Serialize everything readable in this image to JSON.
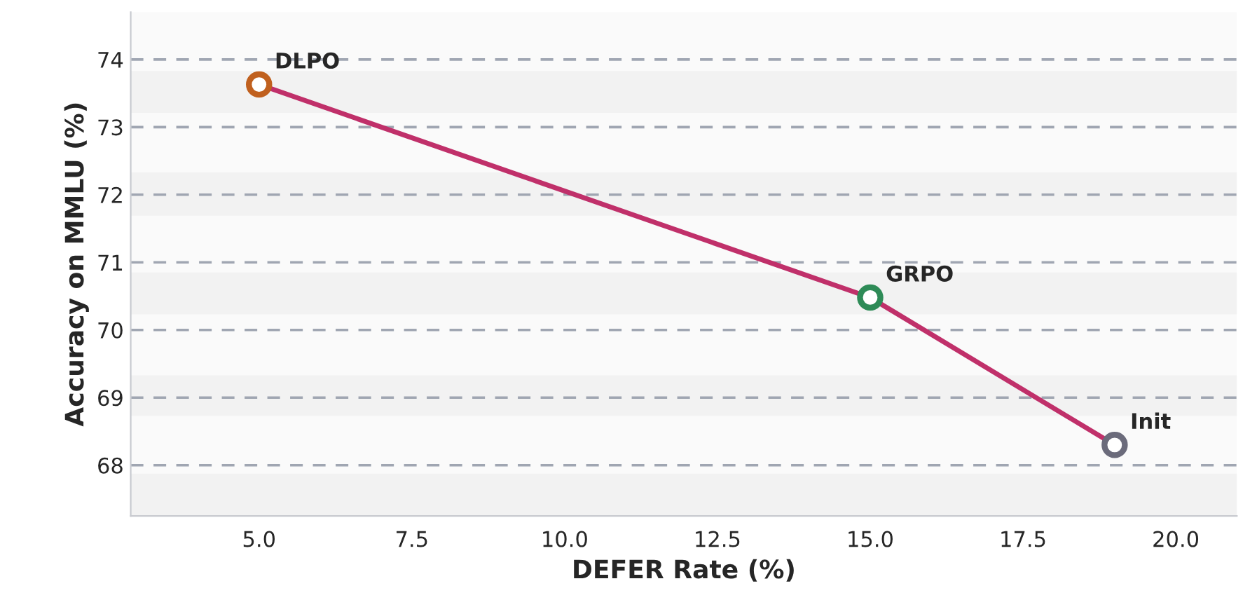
{
  "chart_data": {
    "type": "line",
    "xlabel": "DEFER Rate (%)",
    "ylabel": "Accuracy on MMLU (%)",
    "x": [
      5,
      15,
      19
    ],
    "series": [
      {
        "color": "#c0306a",
        "values": [
          73.63,
          70.48,
          68.3
        ],
        "colors": [
          "#c0601e",
          "#2e8b57",
          "#6b6b7b"
        ]
      }
    ],
    "marker": "circle",
    "line_style": "solid",
    "grid": "y",
    "xlim": [
      2.9,
      21.0
    ],
    "xticks": [
      {
        "value": 5,
        "label": "5.0"
      },
      {
        "value": 7.5,
        "label": "7.5"
      },
      {
        "value": 10,
        "label": "10.0"
      },
      {
        "value": 12.5,
        "label": "12.5"
      },
      {
        "value": 15,
        "label": "15.0"
      },
      {
        "value": 17.5,
        "label": "17.5"
      },
      {
        "value": 20,
        "label": "20.0"
      }
    ],
    "ylim": [
      67.25,
      74.7
    ],
    "yticks": [
      68,
      69,
      70,
      71,
      72,
      73,
      74
    ],
    "bands": [
      {
        "axis": "y",
        "from": 73.21,
        "to": 73.83,
        "color": "#f2f2f2"
      },
      {
        "axis": "y",
        "from": 71.69,
        "to": 72.33,
        "color": "#f2f2f2"
      },
      {
        "axis": "y",
        "from": 70.23,
        "to": 70.85,
        "color": "#f2f2f2"
      },
      {
        "axis": "y",
        "from": 68.73,
        "to": 69.33,
        "color": "#f2f2f2"
      },
      {
        "axis": "y",
        "from": 67.25,
        "to": 67.875,
        "color": "#f2f2f2"
      }
    ],
    "annotations": [
      {
        "text": "DLPO",
        "x": 5,
        "y": 73.63
      },
      {
        "text": "GRPO",
        "x": 15,
        "y": 70.48
      },
      {
        "text": "Init",
        "x": 19,
        "y": 68.3
      }
    ]
  }
}
